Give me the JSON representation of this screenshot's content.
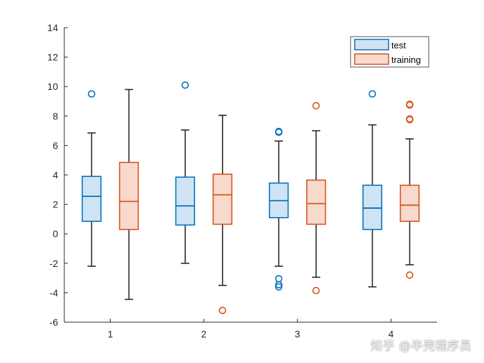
{
  "chart_data": {
    "type": "box",
    "categories": [
      "1",
      "2",
      "3",
      "4"
    ],
    "ylim": [
      -6,
      14
    ],
    "yticks": [
      -6,
      -4,
      -2,
      0,
      2,
      4,
      6,
      8,
      10,
      12,
      14
    ],
    "legend_position": "top-right",
    "colors": {
      "test": "#0072BD",
      "training": "#D95319",
      "whisker": "#262626"
    },
    "series": [
      {
        "name": "test",
        "boxes": [
          {
            "min": -2.2,
            "q1": 0.85,
            "median": 2.55,
            "q3": 3.9,
            "max": 6.85,
            "outliers": [
              9.5
            ]
          },
          {
            "min": -2.0,
            "q1": 0.6,
            "median": 1.9,
            "q3": 3.85,
            "max": 7.05,
            "outliers": [
              10.1
            ]
          },
          {
            "min": -2.2,
            "q1": 1.1,
            "median": 2.25,
            "q3": 3.45,
            "max": 6.3,
            "outliers": [
              6.95,
              6.9,
              -3.05,
              -3.45,
              -3.6
            ]
          },
          {
            "min": -3.6,
            "q1": 0.3,
            "median": 1.75,
            "q3": 3.3,
            "max": 7.4,
            "outliers": [
              9.5
            ]
          }
        ]
      },
      {
        "name": "training",
        "boxes": [
          {
            "min": -4.45,
            "q1": 0.3,
            "median": 2.2,
            "q3": 4.85,
            "max": 9.8,
            "outliers": []
          },
          {
            "min": -3.5,
            "q1": 0.65,
            "median": 2.65,
            "q3": 4.05,
            "max": 8.05,
            "outliers": [
              -5.2
            ]
          },
          {
            "min": -2.95,
            "q1": 0.65,
            "median": 2.05,
            "q3": 3.65,
            "max": 7.0,
            "outliers": [
              8.7,
              -3.85
            ]
          },
          {
            "min": -2.1,
            "q1": 0.85,
            "median": 1.95,
            "q3": 3.3,
            "max": 6.45,
            "outliers": [
              8.8,
              8.75,
              7.8,
              7.75,
              -2.8
            ]
          }
        ]
      }
    ]
  },
  "watermark": "知乎 @半壳程序员"
}
